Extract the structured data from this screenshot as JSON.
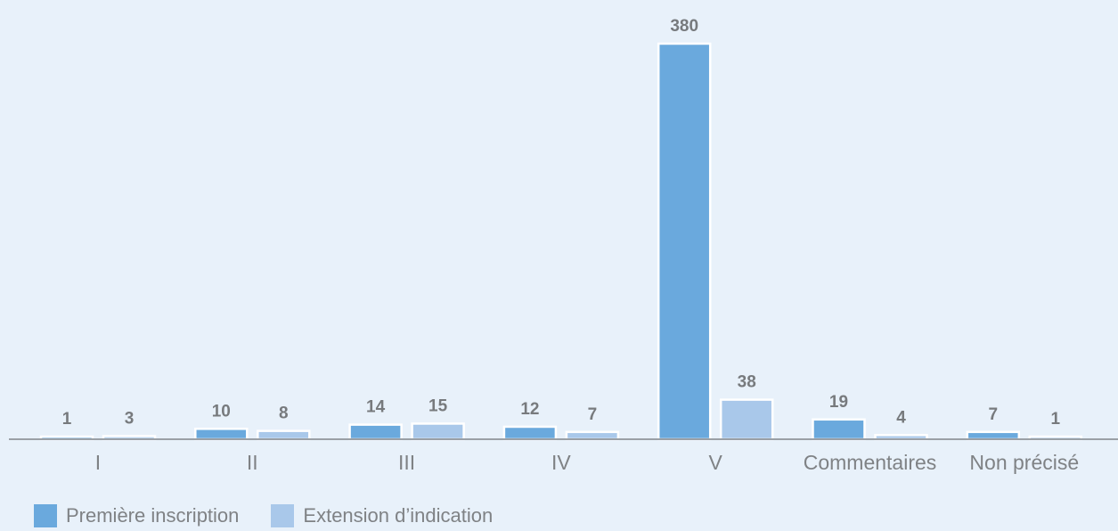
{
  "chart_data": {
    "type": "bar",
    "categories": [
      "I",
      "II",
      "III",
      "IV",
      "V",
      "Commentaires",
      "Non précisé"
    ],
    "series": [
      {
        "name": "Première inscription",
        "values": [
          1,
          10,
          14,
          12,
          380,
          19,
          7
        ],
        "color": "#6aa9dd"
      },
      {
        "name": "Extension d’indication",
        "values": [
          3,
          8,
          15,
          7,
          38,
          4,
          1
        ],
        "color": "#a9c8ea"
      }
    ],
    "ylim": [
      0,
      380
    ],
    "grid": false,
    "legend_position": "bottom-left"
  }
}
